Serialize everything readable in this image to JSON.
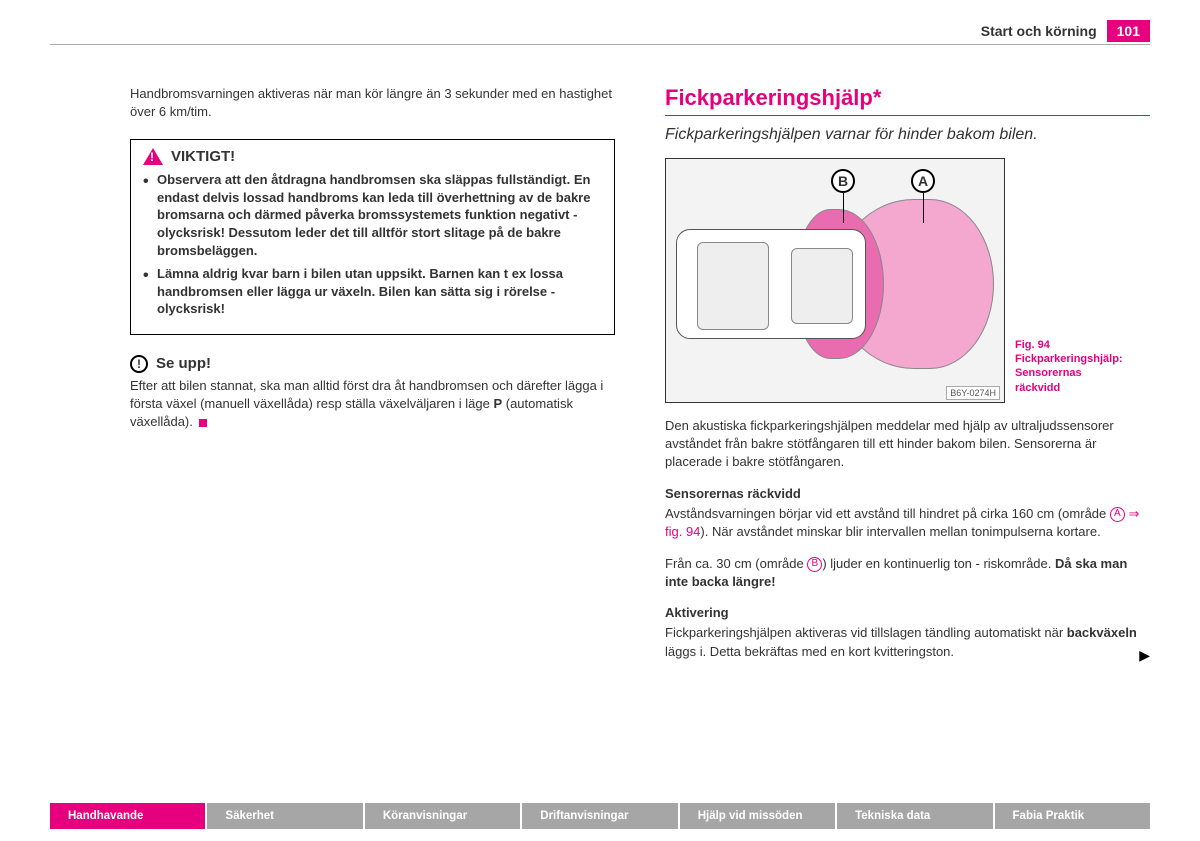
{
  "header": {
    "section": "Start och körning",
    "page": "101"
  },
  "left": {
    "intro": "Handbromsvarningen aktiveras när man kör längre än 3 sekunder med en hastighet över 6 km/tim.",
    "viktigt": {
      "label": "VIKTIGT!",
      "items": [
        "Observera att den åtdragna handbromsen ska släppas fullständigt. En endast delvis lossad handbroms kan leda till överhettning av de bakre bromsarna och därmed påverka bromssystemets funktion negativt - olycksrisk! Dessutom leder det till alltför stort slitage på de bakre bromsbeläggen.",
        "Lämna aldrig kvar barn i bilen utan uppsikt. Barnen kan t ex lossa handbromsen eller lägga ur växeln. Bilen kan sätta sig i rörelse - olycksrisk!"
      ]
    },
    "seupp": {
      "label": "Se upp!",
      "body_pre": "Efter att bilen stannat, ska man alltid först dra åt handbromsen och därefter lägga i första växel (manuell växellåda) resp ställa växelväljaren i läge ",
      "p": "P",
      "body_post": " (automatisk växellåda)."
    }
  },
  "right": {
    "h1": "Fickparkeringshjälp*",
    "h2": "Fickparkeringshjälpen varnar för hinder bakom bilen.",
    "fig": {
      "label_a": "A",
      "label_b": "B",
      "code": "B6Y-0274H",
      "caption": "Fig. 94  Fickparkeringshjälp: Sensorernas räckvidd"
    },
    "p1": "Den akustiska fickparkeringshjälpen meddelar med hjälp av ultraljudssensorer avståndet från bakre stötfångaren till ett hinder bakom bilen. Sensorerna är placerade i bakre stötfångaren.",
    "sub1": "Sensorernas räckvidd",
    "p2a": "Avståndsvarningen börjar vid ett avstånd till hindret på cirka 160 cm (område ",
    "p2b": " ⇒ fig. 94",
    "p2c": "). När avståndet minskar blir intervallen mellan tonimpulserna kortare.",
    "p3a": "Från ca. 30 cm (område ",
    "p3b": ") ljuder en kontinuerlig ton - riskområde. ",
    "p3c": "Då ska man inte backa längre!",
    "sub2": "Aktivering",
    "p4a": "Fickparkeringshjälpen aktiveras vid tillslagen tändling automatiskt när ",
    "p4b": "backväxeln",
    "p4c": " läggs i. Detta bekräftas med en kort kvitteringston."
  },
  "footer": {
    "tabs": [
      "Handhavande",
      "Säkerhet",
      "Köranvisningar",
      "Driftanvisningar",
      "Hjälp vid missöden",
      "Tekniska data",
      "Fabia Praktik"
    ]
  },
  "colors": {
    "brand": "#e6007e",
    "gray": "#a7a6a6",
    "zone_a": "#f4a7cf",
    "zone_b": "#e96bb0"
  }
}
